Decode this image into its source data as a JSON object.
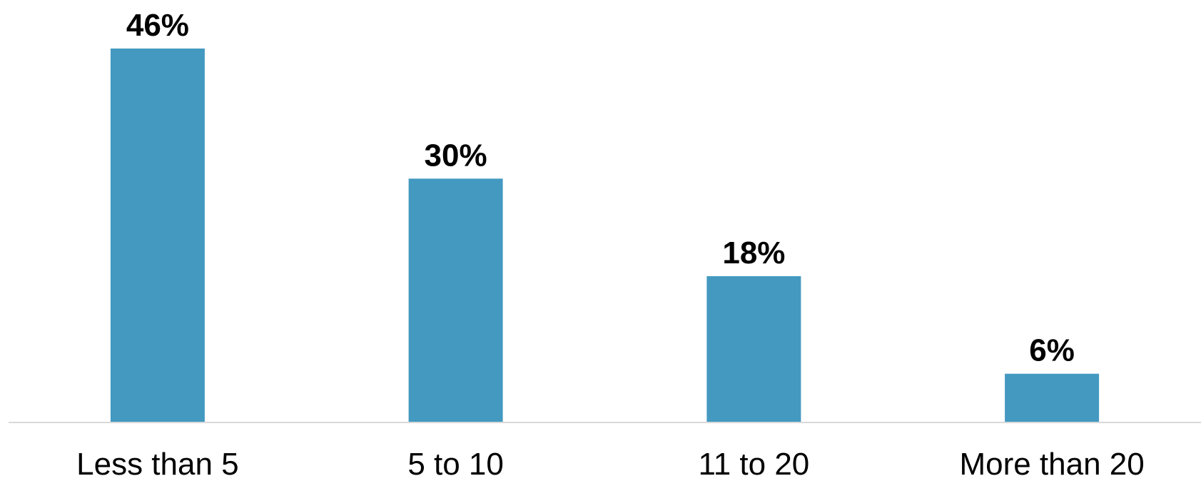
{
  "chart_data": {
    "type": "bar",
    "categories": [
      "Less than 5",
      "5 to 10",
      "11 to 20",
      "More than 20"
    ],
    "values": [
      46,
      30,
      18,
      6
    ],
    "value_labels": [
      "46%",
      "30%",
      "18%",
      "6%"
    ],
    "unit": "%",
    "title": "",
    "xlabel": "",
    "ylabel": "",
    "ylim": [
      0,
      46
    ],
    "grid": false,
    "legend": "none",
    "colors": {
      "bar": "#4499c1",
      "axis": "#d9d9d9",
      "text": "#000000"
    }
  }
}
